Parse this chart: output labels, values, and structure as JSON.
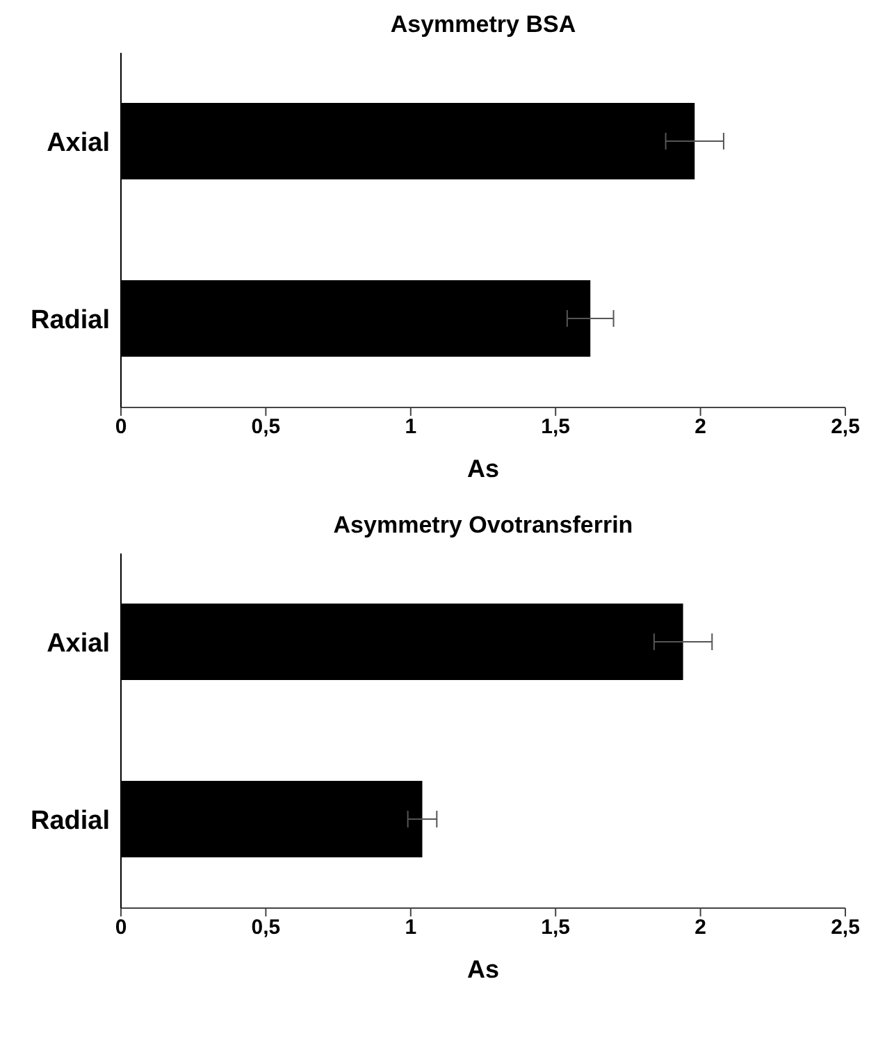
{
  "chart_data": [
    {
      "type": "bar",
      "title": "Asymmetry BSA",
      "xlabel": "As",
      "orientation": "horizontal",
      "categories": [
        "Axial",
        "Radial"
      ],
      "values": [
        1.98,
        1.62
      ],
      "errors": [
        0.1,
        0.08
      ],
      "color": "#000000",
      "xlim": [
        0,
        2.5
      ],
      "xticks": [
        0,
        {
          "value": 0.5,
          "label": "0,5"
        },
        1,
        {
          "value": 1.5,
          "label": "1,5"
        },
        2,
        {
          "value": 2.5,
          "label": "2,5"
        }
      ]
    },
    {
      "type": "bar",
      "title": "Asymmetry Ovotransferrin",
      "xlabel": "As",
      "orientation": "horizontal",
      "categories": [
        "Axial",
        "Radial"
      ],
      "values": [
        1.94,
        1.04
      ],
      "errors": [
        0.1,
        0.05
      ],
      "color": "#000000",
      "xlim": [
        0,
        2.5
      ],
      "xticks": [
        0,
        {
          "value": 0.5,
          "label": "0,5"
        },
        1,
        {
          "value": 1.5,
          "label": "1,5"
        },
        2,
        {
          "value": 2.5,
          "label": "2,5"
        }
      ]
    }
  ]
}
